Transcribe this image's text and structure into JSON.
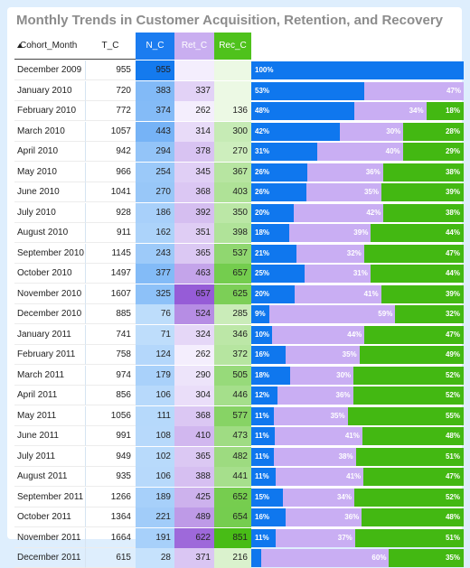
{
  "title": "Monthly Trends in Customer Acquisition, Retention, and Recovery",
  "headers": {
    "month": "Cohort_Month",
    "tc": "T_C",
    "nc": "N_C",
    "ret": "Ret_C",
    "rec": "Rec_C"
  },
  "colors": {
    "new": "#0f77ee",
    "retained": "#c9aef3",
    "recovered": "#43b812"
  },
  "chart_data": {
    "type": "table",
    "title": "Monthly Trends in Customer Acquisition, Retention, and Recovery",
    "columns": [
      "Cohort_Month",
      "T_C",
      "N_C",
      "Ret_C",
      "Rec_C"
    ],
    "sorted_by": "Cohort_Month ascending",
    "rows": [
      {
        "month": "December 2009",
        "tc": 955,
        "nc": 955,
        "ret": null,
        "rec": null,
        "pn": "100%",
        "pr": "",
        "pc": ""
      },
      {
        "month": "January 2010",
        "tc": 720,
        "nc": 383,
        "ret": 337,
        "rec": null,
        "pn": "53%",
        "pr": "47%",
        "pc": ""
      },
      {
        "month": "February 2010",
        "tc": 772,
        "nc": 374,
        "ret": 262,
        "rec": 136,
        "pn": "48%",
        "pr": "34%",
        "pc": "18%"
      },
      {
        "month": "March 2010",
        "tc": 1057,
        "nc": 443,
        "ret": 314,
        "rec": 300,
        "pn": "42%",
        "pr": "30%",
        "pc": "28%"
      },
      {
        "month": "April 2010",
        "tc": 942,
        "nc": 294,
        "ret": 378,
        "rec": 270,
        "pn": "31%",
        "pr": "40%",
        "pc": "29%"
      },
      {
        "month": "May 2010",
        "tc": 966,
        "nc": 254,
        "ret": 345,
        "rec": 367,
        "pn": "26%",
        "pr": "36%",
        "pc": "38%"
      },
      {
        "month": "June 2010",
        "tc": 1041,
        "nc": 270,
        "ret": 368,
        "rec": 403,
        "pn": "26%",
        "pr": "35%",
        "pc": "39%"
      },
      {
        "month": "July 2010",
        "tc": 928,
        "nc": 186,
        "ret": 392,
        "rec": 350,
        "pn": "20%",
        "pr": "42%",
        "pc": "38%"
      },
      {
        "month": "August 2010",
        "tc": 911,
        "nc": 162,
        "ret": 351,
        "rec": 398,
        "pn": "18%",
        "pr": "39%",
        "pc": "44%"
      },
      {
        "month": "September 2010",
        "tc": 1145,
        "nc": 243,
        "ret": 365,
        "rec": 537,
        "pn": "21%",
        "pr": "32%",
        "pc": "47%"
      },
      {
        "month": "October 2010",
        "tc": 1497,
        "nc": 377,
        "ret": 463,
        "rec": 657,
        "pn": "25%",
        "pr": "31%",
        "pc": "44%"
      },
      {
        "month": "November 2010",
        "tc": 1607,
        "nc": 325,
        "ret": 657,
        "rec": 625,
        "pn": "20%",
        "pr": "41%",
        "pc": "39%"
      },
      {
        "month": "December 2010",
        "tc": 885,
        "nc": 76,
        "ret": 524,
        "rec": 285,
        "pn": "9%",
        "pr": "59%",
        "pc": "32%"
      },
      {
        "month": "January 2011",
        "tc": 741,
        "nc": 71,
        "ret": 324,
        "rec": 346,
        "pn": "10%",
        "pr": "44%",
        "pc": "47%"
      },
      {
        "month": "February 2011",
        "tc": 758,
        "nc": 124,
        "ret": 262,
        "rec": 372,
        "pn": "16%",
        "pr": "35%",
        "pc": "49%"
      },
      {
        "month": "March 2011",
        "tc": 974,
        "nc": 179,
        "ret": 290,
        "rec": 505,
        "pn": "18%",
        "pr": "30%",
        "pc": "52%"
      },
      {
        "month": "April 2011",
        "tc": 856,
        "nc": 106,
        "ret": 304,
        "rec": 446,
        "pn": "12%",
        "pr": "36%",
        "pc": "52%"
      },
      {
        "month": "May 2011",
        "tc": 1056,
        "nc": 111,
        "ret": 368,
        "rec": 577,
        "pn": "11%",
        "pr": "35%",
        "pc": "55%"
      },
      {
        "month": "June 2011",
        "tc": 991,
        "nc": 108,
        "ret": 410,
        "rec": 473,
        "pn": "11%",
        "pr": "41%",
        "pc": "48%"
      },
      {
        "month": "July 2011",
        "tc": 949,
        "nc": 102,
        "ret": 365,
        "rec": 482,
        "pn": "11%",
        "pr": "38%",
        "pc": "51%"
      },
      {
        "month": "August 2011",
        "tc": 935,
        "nc": 106,
        "ret": 388,
        "rec": 441,
        "pn": "11%",
        "pr": "41%",
        "pc": "47%"
      },
      {
        "month": "September 2011",
        "tc": 1266,
        "nc": 189,
        "ret": 425,
        "rec": 652,
        "pn": "15%",
        "pr": "34%",
        "pc": "52%"
      },
      {
        "month": "October 2011",
        "tc": 1364,
        "nc": 221,
        "ret": 489,
        "rec": 654,
        "pn": "16%",
        "pr": "36%",
        "pc": "48%"
      },
      {
        "month": "November 2011",
        "tc": 1664,
        "nc": 191,
        "ret": 622,
        "rec": 851,
        "pn": "11%",
        "pr": "37%",
        "pc": "51%"
      },
      {
        "month": "December 2011",
        "tc": 615,
        "nc": 28,
        "ret": 371,
        "rec": 216,
        "pn": "",
        "pr": "60%",
        "pc": "35%"
      }
    ]
  }
}
